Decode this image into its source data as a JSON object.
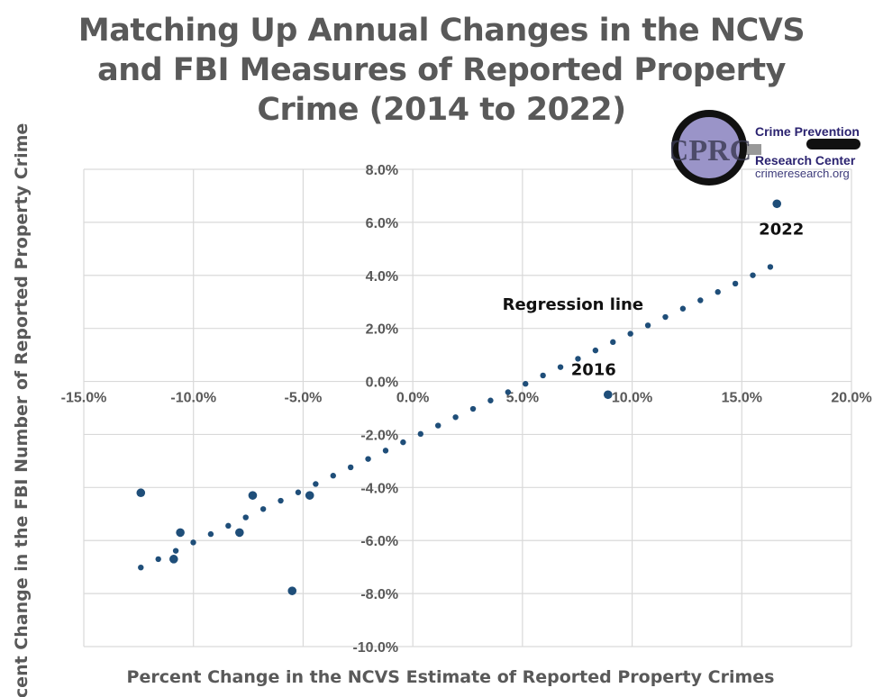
{
  "chart_data": {
    "type": "scatter",
    "title": [
      "Matching Up Annual Changes in the NCVS",
      "and FBI Measures of Reported Property",
      "Crime (2014 to 2022)"
    ],
    "xlabel": "Percent Change in the NCVS Estimate of Reported Property Crimes",
    "ylabel": "Percent Change in the FBI Number of Reported Property Crime",
    "xlim": [
      -15,
      20
    ],
    "ylim": [
      -10,
      8
    ],
    "x_ticks": [
      -15,
      -10,
      -5,
      0,
      5,
      10,
      15,
      20
    ],
    "y_ticks": [
      -10,
      -8,
      -6,
      -4,
      -2,
      0,
      2,
      4,
      6,
      8
    ],
    "x_tick_labels": [
      "-15.0%",
      "-10.0%",
      "-5.0%",
      "0.0%",
      "5.0%",
      "10.0%",
      "15.0%",
      "20.0%"
    ],
    "y_tick_labels": [
      "-10.0%",
      "-8.0%",
      "-6.0%",
      "-4.0%",
      "-2.0%",
      "0.0%",
      "2.0%",
      "4.0%",
      "6.0%",
      "8.0%"
    ],
    "grid": true,
    "points": [
      {
        "x": -12.4,
        "y": -4.2
      },
      {
        "x": -10.6,
        "y": -5.7
      },
      {
        "x": -10.9,
        "y": -6.7
      },
      {
        "x": -7.3,
        "y": -4.3
      },
      {
        "x": -7.9,
        "y": -5.7
      },
      {
        "x": -4.7,
        "y": -4.3
      },
      {
        "x": -5.5,
        "y": -7.9
      },
      {
        "x": 8.9,
        "y": -0.5
      },
      {
        "x": 16.6,
        "y": 6.7
      }
    ],
    "regression": {
      "label": "Regression line",
      "slope": 0.395,
      "intercept": -2.12,
      "x_range": [
        -12.4,
        16.3
      ],
      "style": "dotted"
    },
    "annotations": [
      {
        "text": "2016",
        "x": 8.9,
        "y": -0.5
      },
      {
        "text": "2022",
        "x": 16.6,
        "y": 6.7
      }
    ],
    "colors": {
      "marker": "#1f4e79",
      "grid": "#d9d9d9",
      "text": "#595959"
    }
  },
  "logo": {
    "mark": "CPRC",
    "line1": "Crime Prevention",
    "line2": "Research Center",
    "url": "crimeresearch.org"
  }
}
